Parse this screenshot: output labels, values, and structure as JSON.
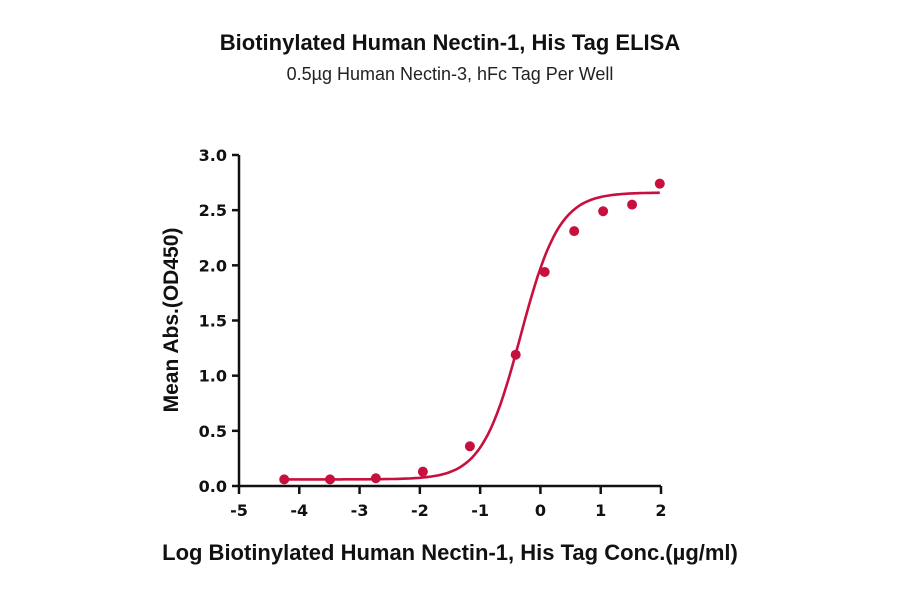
{
  "chart_data": {
    "type": "scatter",
    "title": "Biotinylated Human Nectin-1, His Tag ELISA",
    "subtitle": "0.5µg Human Nectin-3, hFc Tag Per Well",
    "xlabel": "Log Biotinylated Human Nectin-1, His Tag Conc.(µg/ml)",
    "ylabel": "Mean Abs.(OD450)",
    "xlim": [
      -5,
      2
    ],
    "ylim": [
      0,
      3.0
    ],
    "xticks": [
      "-5",
      "-4",
      "-3",
      "-2",
      "-1",
      "0",
      "1",
      "2"
    ],
    "yticks": [
      "0.0",
      "0.5",
      "1.0",
      "1.5",
      "2.0",
      "2.5",
      "3.0"
    ],
    "grid": false,
    "legend": null,
    "series": [
      {
        "name": "Biotinylated Human Nectin-1, His Tag",
        "color": "#c8103e",
        "x": [
          -4.25,
          -3.49,
          -2.73,
          -1.95,
          -1.17,
          -0.41,
          0.07,
          0.56,
          1.04,
          1.52,
          1.98
        ],
        "y": [
          0.06,
          0.06,
          0.07,
          0.13,
          0.36,
          1.19,
          1.94,
          2.31,
          2.49,
          2.55,
          2.74
        ],
        "fit": {
          "model": "4PL",
          "bottom": 0.06,
          "top": 2.66,
          "logEC50": -0.33,
          "hill": 1.35,
          "x_range": [
            -4.25,
            1.98
          ]
        }
      }
    ]
  }
}
